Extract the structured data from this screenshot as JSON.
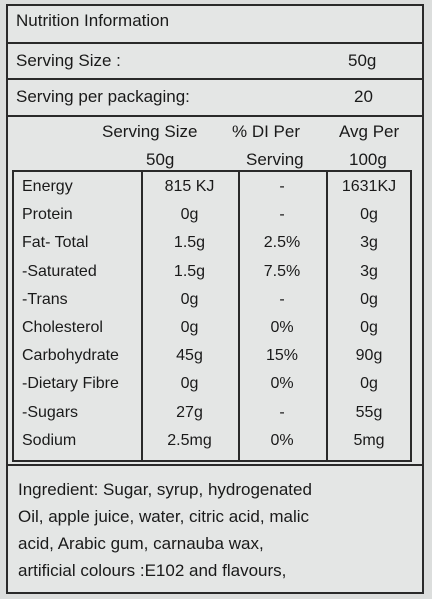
{
  "title": "Nutrition Information",
  "serving_size": {
    "label": "Serving Size :",
    "value": "50g"
  },
  "serving_per_packaging": {
    "label": "Serving per packaging:",
    "value": "20"
  },
  "columns": {
    "col1_line1": "Serving Size",
    "col1_line2": "50g",
    "col2_line1": "% DI Per",
    "col2_line2": "Serving",
    "col3_line1": "Avg Per",
    "col3_line2": "100g"
  },
  "rows": [
    {
      "name": "Energy",
      "serving": "815 KJ",
      "di": "-",
      "avg": "1631KJ"
    },
    {
      "name": "Protein",
      "serving": "0g",
      "di": "-",
      "avg": "0g"
    },
    {
      "name": "Fat- Total",
      "serving": "1.5g",
      "di": "2.5%",
      "avg": "3g"
    },
    {
      "name": "-Saturated",
      "serving": "1.5g",
      "di": "7.5%",
      "avg": "3g"
    },
    {
      "name": "-Trans",
      "serving": "0g",
      "di": "-",
      "avg": "0g"
    },
    {
      "name": "Cholesterol",
      "serving": "0g",
      "di": "0%",
      "avg": "0g"
    },
    {
      "name": "Carbohydrate",
      "serving": "45g",
      "di": "15%",
      "avg": "90g"
    },
    {
      "name": "-Dietary Fibre",
      "serving": "0g",
      "di": "0%",
      "avg": "0g"
    },
    {
      "name": "-Sugars",
      "serving": "27g",
      "di": "-",
      "avg": "55g"
    },
    {
      "name": "Sodium",
      "serving": "2.5mg",
      "di": "0%",
      "avg": "5mg"
    }
  ],
  "ingredients": [
    "Ingredient: Sugar, syrup, hydrogenated",
    "Oil, apple juice, water, citric acid, malic",
    "acid, Arabic gum, carnauba wax,",
    "artificial colours :E102 and flavours,"
  ]
}
